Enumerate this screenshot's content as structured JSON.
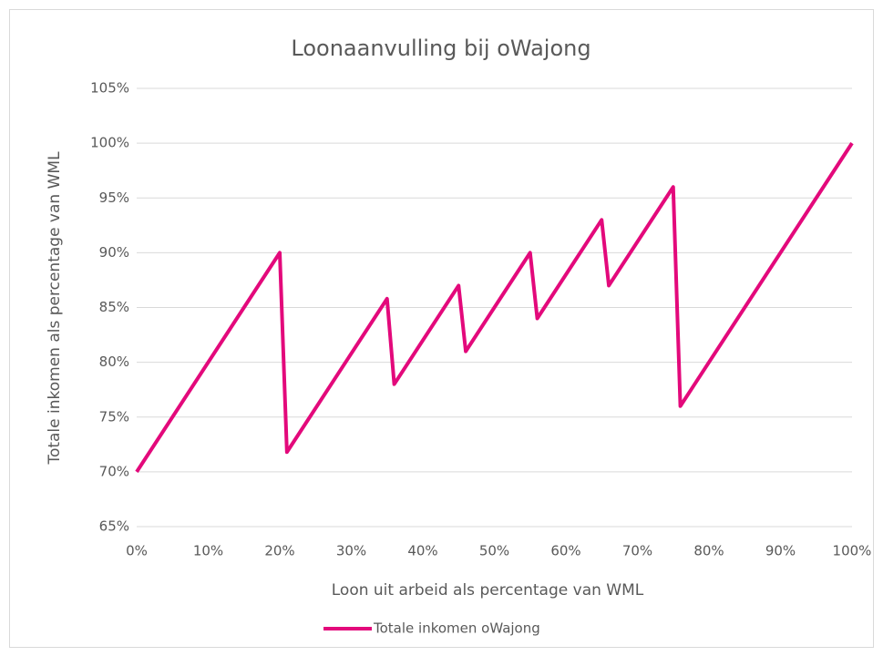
{
  "chart_data": {
    "type": "line",
    "title": "Loonaanvulling bij oWajong",
    "xlabel": "Loon uit arbeid als percentage van WML",
    "ylabel": "Totale inkomen als percentage van WML",
    "x": [
      0,
      20,
      21,
      35,
      36,
      45,
      46,
      55,
      56,
      65,
      66,
      75,
      76,
      100
    ],
    "series": [
      {
        "name": "Totale inkomen oWajong",
        "color": "#e3097b",
        "values": [
          70,
          90,
          71.8,
          85.8,
          78,
          87,
          81,
          90,
          84,
          93,
          87,
          96,
          76,
          100
        ]
      }
    ],
    "xlim": [
      0,
      100
    ],
    "xticks": [
      {
        "value": 0,
        "label": "0%"
      },
      {
        "value": 10,
        "label": "10%"
      },
      {
        "value": 20,
        "label": "20%"
      },
      {
        "value": 30,
        "label": "30%"
      },
      {
        "value": 40,
        "label": "40%"
      },
      {
        "value": 50,
        "label": "50%"
      },
      {
        "value": 60,
        "label": "60%"
      },
      {
        "value": 70,
        "label": "70%"
      },
      {
        "value": 80,
        "label": "80%"
      },
      {
        "value": 90,
        "label": "90%"
      },
      {
        "value": 100,
        "label": "100%"
      }
    ],
    "ylim": [
      65,
      105
    ],
    "yticks": [
      {
        "value": 65,
        "label": "65%"
      },
      {
        "value": 70,
        "label": "70%"
      },
      {
        "value": 75,
        "label": "75%"
      },
      {
        "value": 80,
        "label": "80%"
      },
      {
        "value": 85,
        "label": "85%"
      },
      {
        "value": 90,
        "label": "90%"
      },
      {
        "value": 95,
        "label": "95%"
      },
      {
        "value": 100,
        "label": "100%"
      },
      {
        "value": 105,
        "label": "105%"
      }
    ],
    "grid": true,
    "legend": "bottom"
  }
}
